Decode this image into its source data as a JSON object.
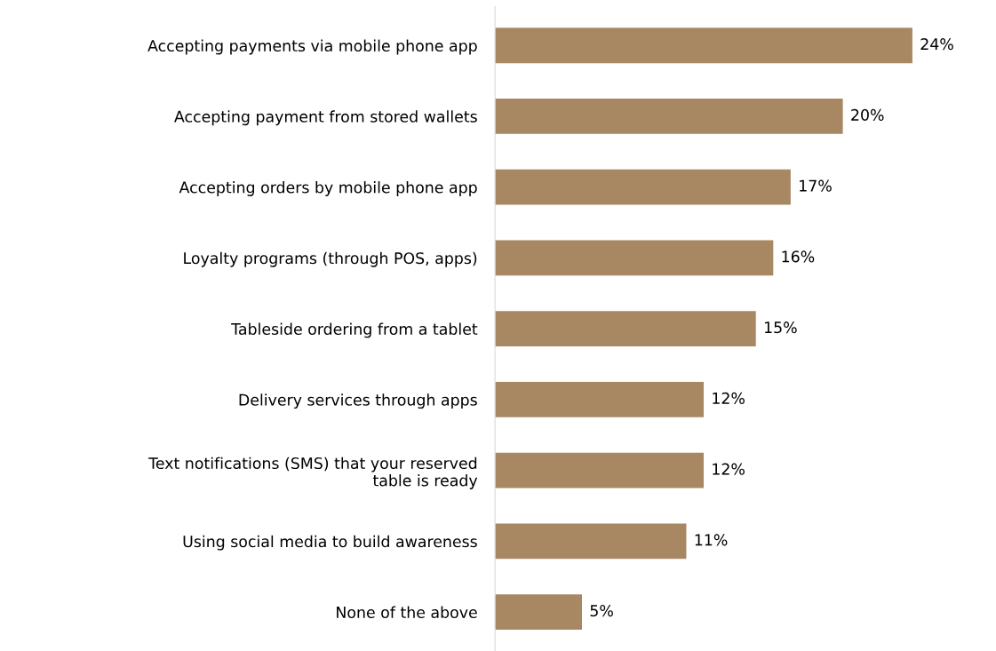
{
  "chart_data": {
    "type": "bar",
    "orientation": "horizontal",
    "categories": [
      "Accepting payments via mobile phone app",
      "Accepting payment from stored wallets",
      "Accepting orders by mobile phone app",
      "Loyalty programs (through POS, apps)",
      "Tableside ordering from a tablet",
      "Delivery services through apps",
      "Text notifications (SMS) that your reserved\ntable is ready",
      "Using social media to build awareness",
      "None of the above"
    ],
    "values": [
      24,
      20,
      17,
      16,
      15,
      12,
      12,
      11,
      5
    ],
    "value_labels": [
      "24%",
      "20%",
      "17%",
      "16%",
      "15%",
      "12%",
      "12%",
      "11%",
      "5%"
    ],
    "color": "#a88763"
  }
}
